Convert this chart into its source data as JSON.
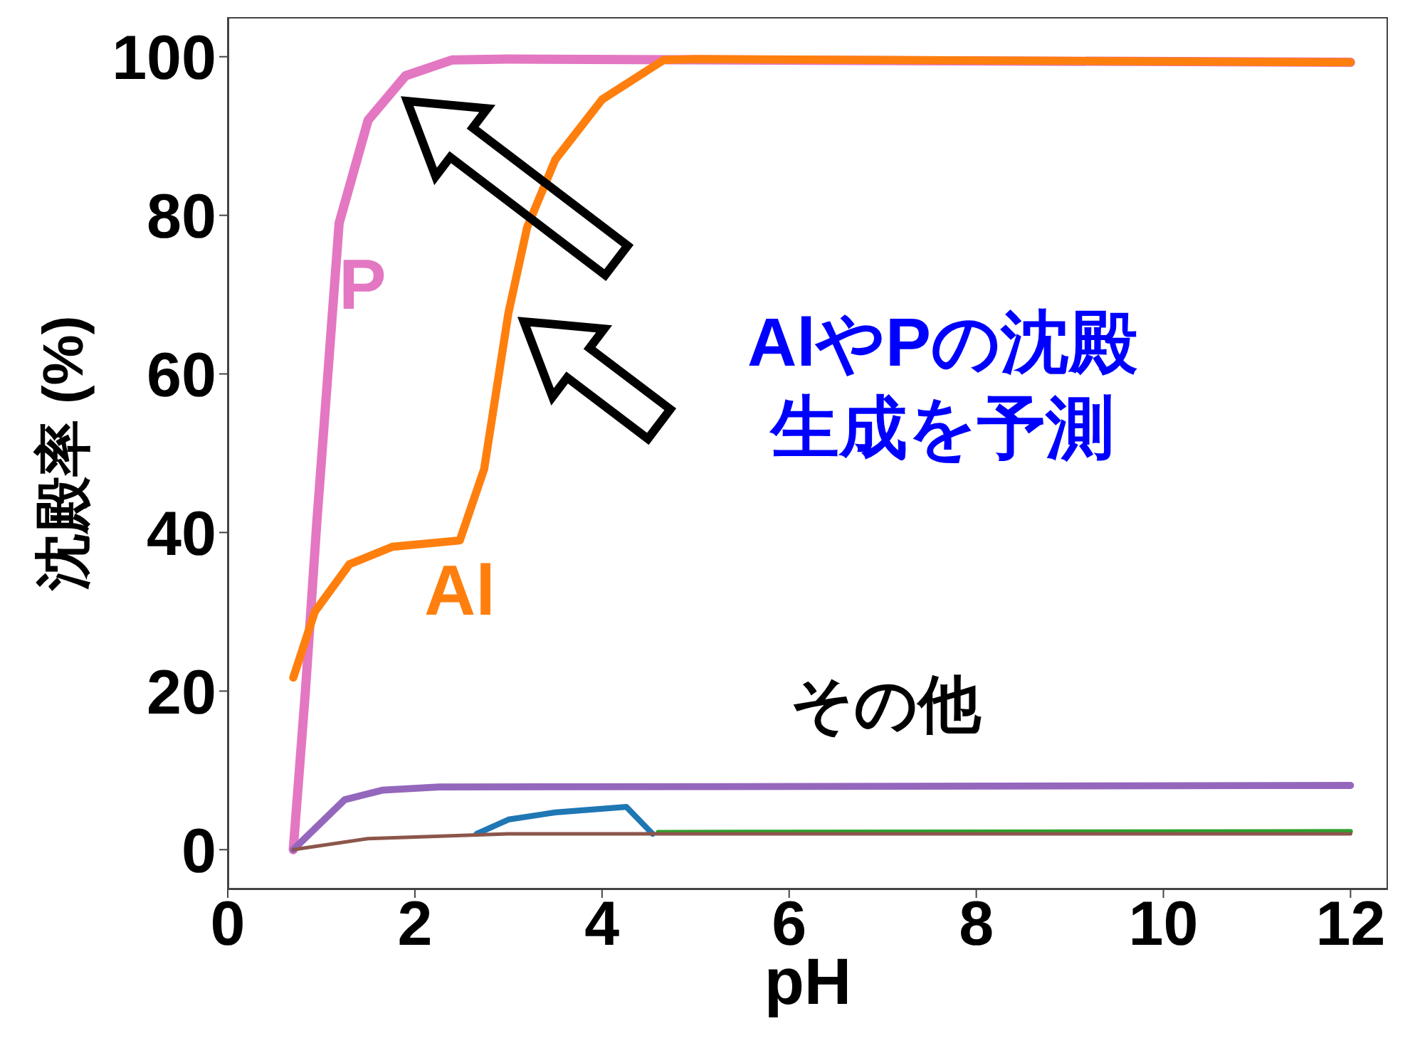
{
  "chart_data": {
    "type": "line",
    "xlabel": "pH",
    "ylabel": "沈殿率 (%)",
    "xlim": [
      0,
      12.4
    ],
    "xticks": [
      0,
      2,
      4,
      6,
      8,
      10,
      12
    ],
    "ylim": [
      -5,
      105
    ],
    "yticks": [
      0,
      20,
      40,
      60,
      80,
      100
    ],
    "marker": "none",
    "line_style": "solid",
    "annotations": [
      "AlやPの沈殿生成を予測",
      "その他"
    ],
    "series": [
      {
        "name": "P",
        "color": "#e377c2",
        "x": [
          0.7,
          0.83,
          0.95,
          1.19,
          1.5,
          1.9,
          2.4,
          3,
          12
        ],
        "values": [
          0,
          20,
          41,
          79,
          92,
          97.6,
          99.6,
          99.7,
          99.3
        ]
      },
      {
        "name": "Al",
        "color": "#ff7f0e",
        "x": [
          0.7,
          0.93,
          1.3,
          1.76,
          2.48,
          2.74,
          3.0,
          3.2,
          3.5,
          4.0,
          4.66,
          5.0,
          12
        ],
        "values": [
          21.7,
          30,
          36,
          38.2,
          39,
          48,
          67.7,
          78.5,
          87,
          94.6,
          99.6,
          99.7,
          99.3
        ]
      },
      {
        "color": "#9467bd",
        "x": [
          0.7,
          1.25,
          1.65,
          2.26,
          12
        ],
        "values": [
          0,
          6.3,
          7.5,
          7.9,
          8.1
        ]
      },
      {
        "color": "#1f77b4",
        "x": [
          2.66,
          3.0,
          3.5,
          4.26,
          4.54
        ],
        "values": [
          2,
          3.8,
          4.7,
          5.4,
          2
        ]
      },
      {
        "color": "#2ca02c",
        "x": [
          4.6,
          12
        ],
        "values": [
          2.2,
          2.3
        ]
      },
      {
        "color": "#8c564b",
        "x": [
          0.7,
          1.5,
          3,
          12
        ],
        "values": [
          0,
          1.4,
          2,
          2
        ]
      }
    ]
  }
}
